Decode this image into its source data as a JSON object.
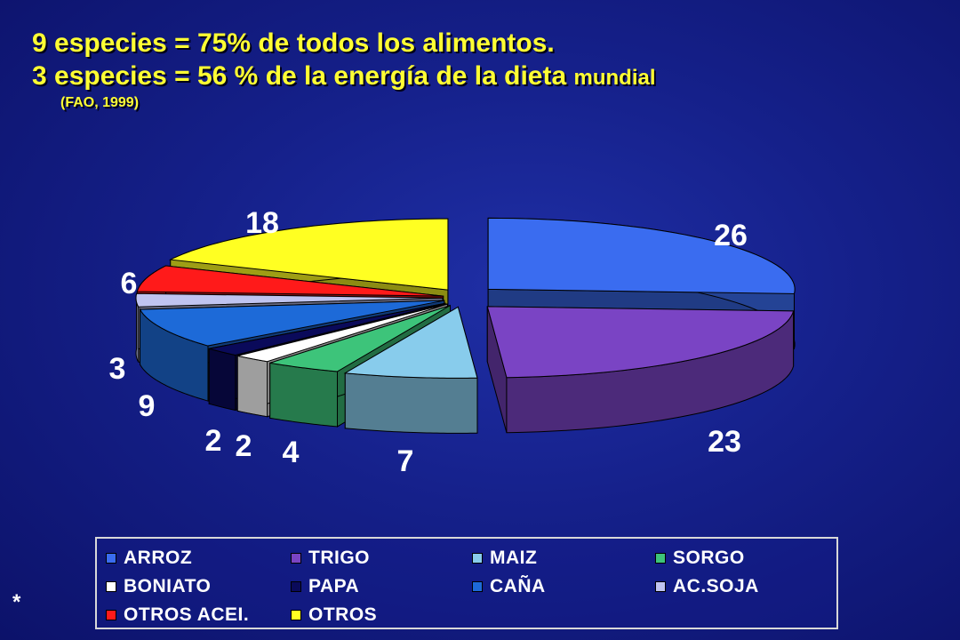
{
  "title": {
    "line1": "9 especies =  75% de todos los alimentos.",
    "line2_main": "3  especies = 56 % de la energía de la dieta ",
    "line2_small": "mundial",
    "source": "(FAO, 1999)"
  },
  "footnote": "*",
  "chart_data": {
    "type": "pie",
    "style": "3d-exploded",
    "legend_position": "bottom",
    "data_labels": true,
    "slices": [
      {
        "label": "ARROZ",
        "value": 26,
        "color": "#3a6cf0"
      },
      {
        "label": "TRIGO",
        "value": 23,
        "color": "#7a44c4"
      },
      {
        "label": "MAIZ",
        "value": 7,
        "color": "#88ccec"
      },
      {
        "label": "SORGO",
        "value": 4,
        "color": "#3dc47a"
      },
      {
        "label": "BONIATO",
        "value": 2,
        "color": "#ffffff"
      },
      {
        "label": "PAPA",
        "value": 2,
        "color": "#0a0a5a"
      },
      {
        "label": "CAÑA",
        "value": 9,
        "color": "#1d6ad8"
      },
      {
        "label": "AC.SOJA",
        "value": 3,
        "color": "#c0c4f0"
      },
      {
        "label": "OTROS ACEI.",
        "value": 6,
        "color": "#ff1a1a"
      },
      {
        "label": "OTROS",
        "value": 18,
        "color": "#ffff22"
      }
    ],
    "printed_labels": [
      "26",
      "23",
      "7",
      "4",
      "2",
      "2",
      "9",
      "3",
      "6",
      "18"
    ]
  }
}
